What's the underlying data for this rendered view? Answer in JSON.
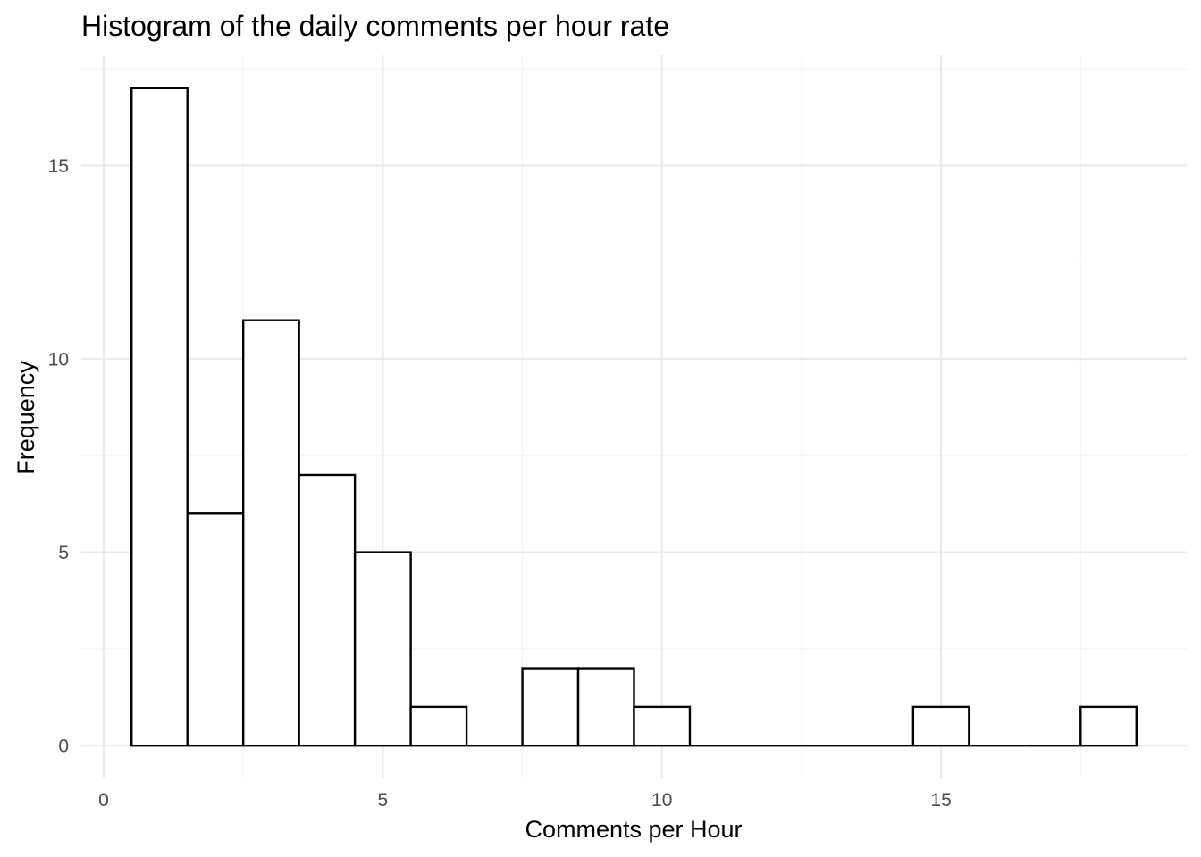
{
  "chart_data": {
    "type": "bar",
    "title": "Histogram of the daily comments per hour rate",
    "xlabel": "Comments per Hour",
    "ylabel": "Frequency",
    "bin_width": 1,
    "bins": [
      {
        "x0": 0.5,
        "x1": 1.5,
        "count": 17
      },
      {
        "x0": 1.5,
        "x1": 2.5,
        "count": 6
      },
      {
        "x0": 2.5,
        "x1": 3.5,
        "count": 11
      },
      {
        "x0": 3.5,
        "x1": 4.5,
        "count": 7
      },
      {
        "x0": 4.5,
        "x1": 5.5,
        "count": 5
      },
      {
        "x0": 5.5,
        "x1": 6.5,
        "count": 1
      },
      {
        "x0": 6.5,
        "x1": 7.5,
        "count": 0
      },
      {
        "x0": 7.5,
        "x1": 8.5,
        "count": 2
      },
      {
        "x0": 8.5,
        "x1": 9.5,
        "count": 2
      },
      {
        "x0": 9.5,
        "x1": 10.5,
        "count": 1
      },
      {
        "x0": 10.5,
        "x1": 11.5,
        "count": 0
      },
      {
        "x0": 11.5,
        "x1": 12.5,
        "count": 0
      },
      {
        "x0": 12.5,
        "x1": 13.5,
        "count": 0
      },
      {
        "x0": 13.5,
        "x1": 14.5,
        "count": 0
      },
      {
        "x0": 14.5,
        "x1": 15.5,
        "count": 1
      },
      {
        "x0": 15.5,
        "x1": 16.5,
        "count": 0
      },
      {
        "x0": 16.5,
        "x1": 17.5,
        "count": 0
      },
      {
        "x0": 17.5,
        "x1": 18.5,
        "count": 1
      }
    ],
    "xlim": [
      -0.4,
      19.4
    ],
    "ylim": [
      -0.85,
      17.85
    ],
    "x_ticks": [
      0,
      5,
      10,
      15
    ],
    "x_tick_labels": [
      "0",
      "5",
      "10",
      "15"
    ],
    "x_minor_ticks": [
      2.5,
      7.5,
      12.5,
      17.5
    ],
    "y_ticks": [
      0,
      5,
      10,
      15
    ],
    "y_tick_labels": [
      "0",
      "5",
      "10",
      "15"
    ],
    "y_minor_ticks": [
      2.5,
      7.5,
      12.5,
      17.5
    ],
    "grid": true,
    "legend": "none",
    "colors": {
      "bar_fill": "#ffffff",
      "bar_outline": "#000000",
      "grid_major": "#ebebeb",
      "grid_minor": "#f2f2f2",
      "tick_text": "#4d4d4d"
    }
  }
}
